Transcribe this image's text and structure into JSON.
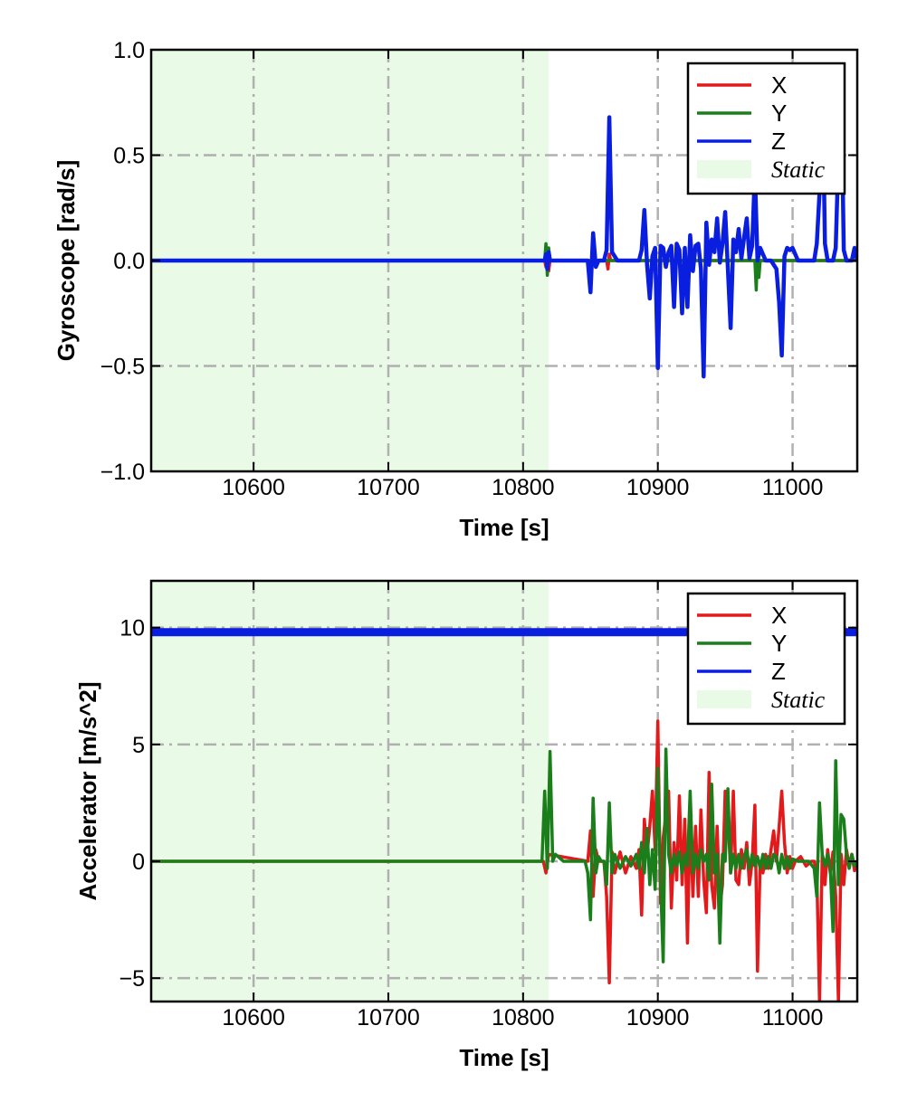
{
  "chart_data": [
    {
      "type": "line",
      "xlabel": "Time [s]",
      "ylabel": "Gyroscope [rad/s]",
      "xlim": [
        10524,
        11048
      ],
      "ylim": [
        -1.0,
        1.0
      ],
      "xticks": [
        10600,
        10700,
        10800,
        10900,
        11000
      ],
      "xtick_labels": [
        "10600",
        "10700",
        "10800",
        "10900",
        "11000"
      ],
      "yticks": [
        -1.0,
        -0.5,
        0.0,
        0.5,
        1.0
      ],
      "ytick_labels": [
        "−1.0",
        "−0.5",
        "0.0",
        "0.5",
        "1.0"
      ],
      "grid": true,
      "legend_position": "top-right",
      "static_region": [
        10524,
        10819
      ],
      "series": [
        {
          "name": "X",
          "color": "#e31a1c",
          "x": [
            10524,
            10816,
            10817,
            10818,
            10819,
            10820,
            10862,
            10863,
            10864,
            10865,
            11048
          ],
          "y": [
            0,
            0,
            -0.03,
            0.05,
            -0.05,
            0,
            0,
            -0.04,
            0.03,
            0,
            0
          ]
        },
        {
          "name": "Y",
          "color": "#1a7f1a",
          "x": [
            10524,
            10816,
            10817,
            10818,
            10819,
            10820,
            10972,
            10973,
            10974,
            10975,
            10976,
            11048
          ],
          "y": [
            0,
            0,
            0.08,
            -0.07,
            0.06,
            0,
            0,
            -0.14,
            0.06,
            -0.08,
            0,
            0
          ]
        },
        {
          "name": "Z",
          "color": "#0a1ee0",
          "x": [
            10524,
            10816,
            10817,
            10818,
            10819,
            10820,
            10848,
            10850,
            10852,
            10854,
            10856,
            10860,
            10862,
            10864,
            10866,
            10870,
            10886,
            10888,
            10890,
            10892,
            10894,
            10896,
            10898,
            10900,
            10902,
            10904,
            10906,
            10908,
            10910,
            10912,
            10914,
            10916,
            10918,
            10920,
            10922,
            10924,
            10926,
            10928,
            10930,
            10932,
            10934,
            10936,
            10938,
            10940,
            10942,
            10944,
            10946,
            10948,
            10950,
            10952,
            10954,
            10956,
            10958,
            10960,
            10962,
            10964,
            10966,
            10968,
            10970,
            10972,
            10974,
            10976,
            10978,
            10980,
            10982,
            10984,
            10988,
            10990,
            10992,
            10994,
            10996,
            10998,
            11000,
            11004,
            11016,
            11018,
            11020,
            11022,
            11024,
            11026,
            11030,
            11032,
            11034,
            11036,
            11038,
            11040,
            11044,
            11046,
            11048
          ],
          "y": [
            0,
            0,
            0.03,
            -0.04,
            0.04,
            0,
            0,
            -0.15,
            0.13,
            -0.03,
            0,
            0,
            0.05,
            0.68,
            0.04,
            0,
            0,
            0.05,
            0.24,
            -0.02,
            -0.18,
            0.02,
            0.06,
            -0.51,
            0.07,
            0.06,
            -0.03,
            0.04,
            0.07,
            -0.22,
            0.08,
            0.05,
            -0.25,
            0.06,
            -0.22,
            0.12,
            -0.05,
            0.07,
            0.08,
            -0.04,
            -0.55,
            0.18,
            -0.02,
            0.1,
            0.04,
            0.2,
            -0.01,
            0.08,
            0.23,
            -0.04,
            -0.32,
            0.1,
            0.04,
            0.15,
            0.01,
            0.11,
            0.2,
            0.01,
            0.07,
            0.42,
            0.0,
            0.06,
            0.03,
            0.0,
            0,
            0,
            -0.04,
            -0.2,
            -0.45,
            0.02,
            0.06,
            0.05,
            0.06,
            0,
            0,
            0.08,
            0.32,
            0.9,
            0.08,
            0,
            0,
            0.06,
            0.5,
            0.9,
            0.05,
            0,
            0,
            0.06,
            0
          ]
        }
      ]
    },
    {
      "type": "line",
      "xlabel": "Time [s]",
      "ylabel": "Accelerator [m/s^2]",
      "xlim": [
        10524,
        11048
      ],
      "ylim": [
        -6,
        12
      ],
      "xticks": [
        10600,
        10700,
        10800,
        10900,
        11000
      ],
      "xtick_labels": [
        "10600",
        "10700",
        "10800",
        "10900",
        "11000"
      ],
      "yticks": [
        -5,
        0,
        5,
        10
      ],
      "ytick_labels": [
        "−5",
        "0",
        "5",
        "10"
      ],
      "grid": true,
      "legend_position": "top-right",
      "static_region": [
        10524,
        10819
      ],
      "series": [
        {
          "name": "X",
          "color": "#e31a1c",
          "x": [
            10524,
            10815,
            10817,
            10819,
            10848,
            10850,
            10852,
            10854,
            10856,
            10860,
            10862,
            10864,
            10866,
            10868,
            10872,
            10876,
            10880,
            10884,
            10886,
            10888,
            10890,
            10892,
            10894,
            10896,
            10898,
            10900,
            10902,
            10904,
            10906,
            10908,
            10910,
            10912,
            10914,
            10916,
            10918,
            10920,
            10922,
            10924,
            10926,
            10928,
            10930,
            10932,
            10934,
            10936,
            10938,
            10940,
            10942,
            10944,
            10946,
            10948,
            10950,
            10952,
            10954,
            10956,
            10958,
            10960,
            10962,
            10964,
            10966,
            10968,
            10970,
            10972,
            10974,
            10976,
            10978,
            10980,
            10982,
            10984,
            10986,
            10988,
            10990,
            10992,
            10994,
            10996,
            10998,
            11000,
            11002,
            11006,
            11010,
            11014,
            11016,
            11018,
            11020,
            11022,
            11024,
            11026,
            11028,
            11030,
            11032,
            11034,
            11036,
            11038,
            11040,
            11042,
            11044,
            11046,
            11048
          ],
          "y": [
            0,
            0,
            -0.5,
            0.3,
            0,
            1.3,
            -1.5,
            0.5,
            0,
            0,
            -1.5,
            -5.2,
            0.4,
            -0.5,
            0.4,
            -0.5,
            0.2,
            -0.3,
            0.5,
            -2.3,
            1.8,
            0.3,
            1.5,
            3.0,
            0.5,
            6.0,
            -1.8,
            1.0,
            2.0,
            3.0,
            -2.0,
            0.8,
            -0.8,
            2.8,
            -1.0,
            1.8,
            -3.5,
            2.0,
            -1.5,
            1.5,
            -1.5,
            2.2,
            -0.8,
            -2.2,
            3.8,
            -1.0,
            -2.0,
            1.5,
            -2.0,
            -1.0,
            3.0,
            2.0,
            -0.5,
            3.0,
            -0.8,
            -1.0,
            0.5,
            -0.3,
            0.8,
            -1.0,
            0.0,
            2.4,
            -4.7,
            0.0,
            -0.5,
            0.3,
            -0.3,
            0.5,
            1.3,
            0.0,
            1.5,
            3.0,
            0.8,
            -0.5,
            0.2,
            -0.3,
            0,
            0.2,
            -0.2,
            0,
            0,
            -0.5,
            -6.0,
            0.3,
            -1.0,
            0.5,
            -0.5,
            0.4,
            -1.5,
            -6.0,
            0.3,
            -1.0,
            0.5,
            -0.2,
            0.3,
            -0.4,
            0
          ]
        },
        {
          "name": "Y",
          "color": "#1a7f1a",
          "x": [
            10524,
            10814,
            10816,
            10818,
            10820,
            10822,
            10824,
            10830,
            10846,
            10848,
            10850,
            10852,
            10854,
            10856,
            10858,
            10860,
            10862,
            10864,
            10866,
            10868,
            10872,
            10876,
            10880,
            10884,
            10886,
            10888,
            10890,
            10892,
            10894,
            10896,
            10898,
            10900,
            10902,
            10904,
            10906,
            10908,
            10910,
            10912,
            10914,
            10916,
            10918,
            10920,
            10922,
            10924,
            10926,
            10928,
            10930,
            10932,
            10934,
            10936,
            10938,
            10940,
            10942,
            10944,
            10946,
            10948,
            10950,
            10952,
            10954,
            10956,
            10958,
            10960,
            10962,
            10964,
            10966,
            10968,
            10970,
            10972,
            10974,
            10976,
            10978,
            10980,
            10982,
            10984,
            10986,
            10988,
            10990,
            10992,
            10994,
            10996,
            10998,
            11000,
            11004,
            11012,
            11016,
            11018,
            11020,
            11022,
            11024,
            11026,
            11028,
            11030,
            11032,
            11034,
            11036,
            11038,
            11040,
            11042,
            11044,
            11046,
            11048
          ],
          "y": [
            0,
            0,
            3.0,
            -0.3,
            4.7,
            0.0,
            0.3,
            0,
            0,
            -0.5,
            -2.5,
            2.7,
            -0.5,
            0.2,
            0,
            0,
            -1.0,
            2.5,
            -0.5,
            0.3,
            -0.3,
            0.2,
            -0.2,
            0.3,
            -0.3,
            0.8,
            -0.5,
            1.4,
            -1.0,
            0.5,
            -1.2,
            4.0,
            -0.8,
            -4.3,
            4.8,
            0.3,
            -0.5,
            0.3,
            -0.2,
            0.4,
            -0.5,
            0.3,
            -0.2,
            3.0,
            -0.5,
            0.3,
            -0.3,
            0.5,
            0.0,
            0.3,
            -0.8,
            3.3,
            -0.5,
            0.3,
            -3.5,
            0.3,
            0.0,
            3.1,
            -0.5,
            0.3,
            -0.3,
            0.3,
            -0.3,
            0.2,
            0.5,
            -0.3,
            0.3,
            -0.2,
            0.2,
            -0.3,
            0.3,
            -0.3,
            0.2,
            -0.3,
            0.3,
            0.2,
            -0.5,
            0.3,
            -0.3,
            0.2,
            -0.3,
            0.1,
            0,
            0,
            -0.3,
            -1.5,
            2.5,
            0.3,
            -0.2,
            0.3,
            -0.3,
            -3.0,
            4.3,
            -1.0,
            2.0,
            1.8,
            0.3,
            -0.3,
            0.3,
            -0.2,
            0
          ]
        },
        {
          "name": "Z",
          "color": "#0a1ee0",
          "x": [
            10524,
            11048
          ],
          "y": [
            9.8,
            9.8
          ]
        }
      ]
    }
  ],
  "legend": {
    "items": [
      "X",
      "Y",
      "Z"
    ],
    "static_label": "Static",
    "static_color": "#e9fbe6"
  },
  "colors": {
    "grid": "#b0b0b0",
    "axes": "#000000"
  }
}
